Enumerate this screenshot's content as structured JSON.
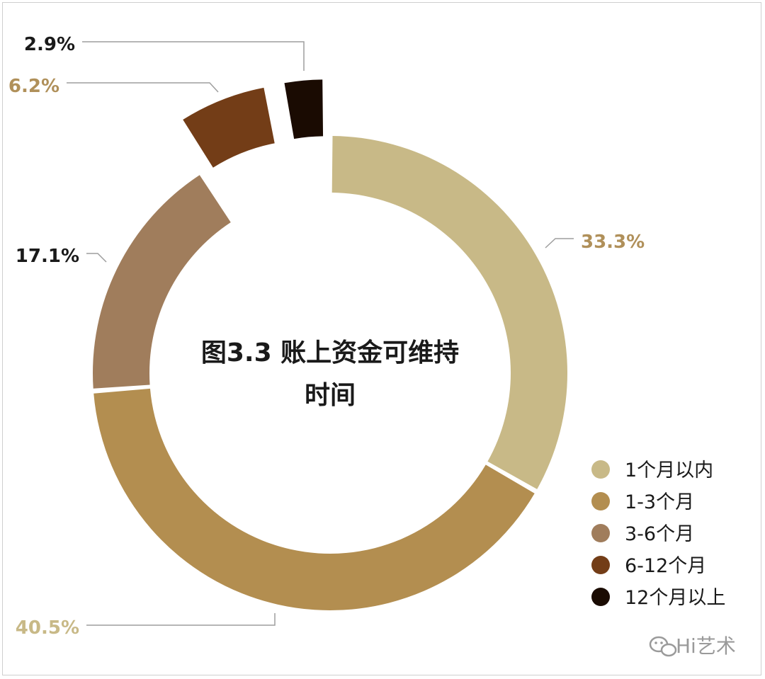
{
  "chart_data": {
    "type": "pie",
    "title": [
      "图3.3 账上资金可维持",
      "时间"
    ],
    "categories": [
      "1个月以内",
      "1-3个月",
      "3-6个月",
      "6-12个月",
      "12个月以上"
    ],
    "values": [
      33.3,
      40.5,
      17.1,
      6.2,
      2.9
    ],
    "value_labels": [
      "33.3%",
      "40.5%",
      "17.1%",
      "6.2%",
      "2.9%"
    ],
    "colors": [
      "#C8B987",
      "#B38E50",
      "#A07D5C",
      "#733D17",
      "#1A0B02"
    ],
    "legend_position": "bottom-right"
  },
  "watermark": "Hi艺术"
}
